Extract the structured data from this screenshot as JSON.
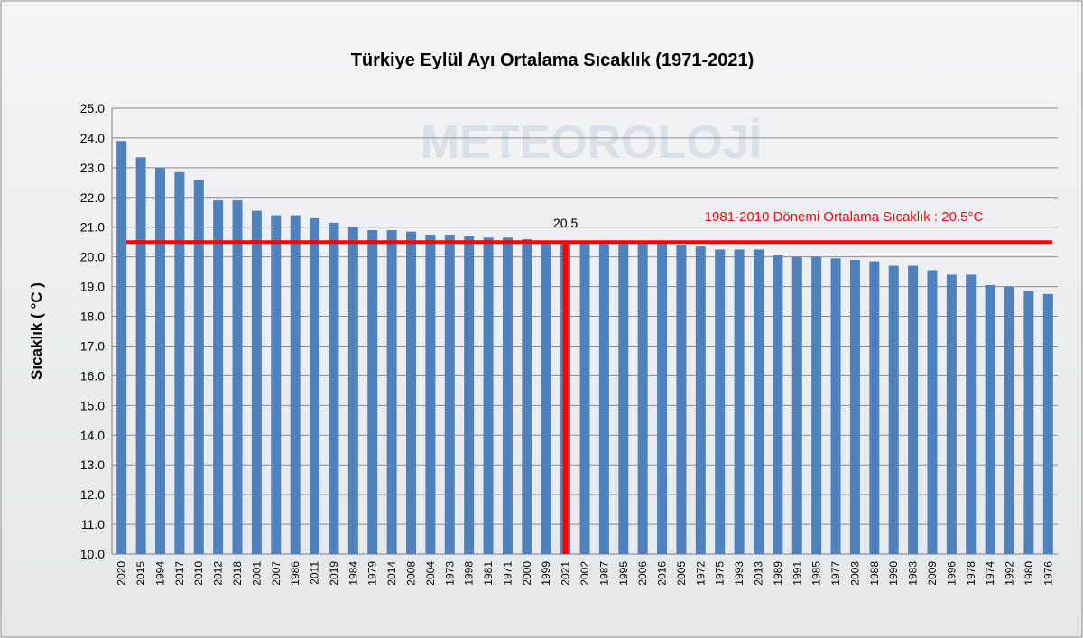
{
  "chart_data": {
    "type": "bar",
    "title": "Türkiye Eylül Ayı Ortalama Sıcaklık (1971-2021)",
    "y_label": "Sıcaklık ( °C )",
    "watermark": "METEOROLOJİ",
    "categories": [
      "2020",
      "2015",
      "1994",
      "2017",
      "2010",
      "2012",
      "2018",
      "2001",
      "2007",
      "1986",
      "2011",
      "2019",
      "1984",
      "1979",
      "2014",
      "2008",
      "2004",
      "1973",
      "1998",
      "1981",
      "1971",
      "2000",
      "1999",
      "2021",
      "2002",
      "1987",
      "1995",
      "2006",
      "2016",
      "2005",
      "1972",
      "1975",
      "1993",
      "2013",
      "1989",
      "1991",
      "1985",
      "1977",
      "2003",
      "1988",
      "1990",
      "1983",
      "2009",
      "1996",
      "1978",
      "1974",
      "1992",
      "1980",
      "1976"
    ],
    "values": [
      23.9,
      23.35,
      23.0,
      22.85,
      22.6,
      21.9,
      21.9,
      21.55,
      21.4,
      21.4,
      21.3,
      21.15,
      21.0,
      20.9,
      20.9,
      20.85,
      20.75,
      20.75,
      20.7,
      20.65,
      20.65,
      20.6,
      20.55,
      20.5,
      20.5,
      20.5,
      20.5,
      20.45,
      20.45,
      20.4,
      20.35,
      20.25,
      20.25,
      20.25,
      20.05,
      20.0,
      20.0,
      19.95,
      19.9,
      19.85,
      19.7,
      19.7,
      19.55,
      19.4,
      19.4,
      19.05,
      19.0,
      18.85,
      18.75
    ],
    "color": "#4f81bd",
    "ylim": [
      10,
      25
    ],
    "yticks": [
      {
        "value": 10,
        "label": "10.0"
      },
      {
        "value": 11,
        "label": "11.0"
      },
      {
        "value": 12,
        "label": "12.0"
      },
      {
        "value": 13,
        "label": "13.0"
      },
      {
        "value": 14,
        "label": "14.0"
      },
      {
        "value": 15,
        "label": "15.0"
      },
      {
        "value": 16,
        "label": "16.0"
      },
      {
        "value": 17,
        "label": "17.0"
      },
      {
        "value": 18,
        "label": "18.0"
      },
      {
        "value": 19,
        "label": "19.0"
      },
      {
        "value": 20,
        "label": "20.0"
      },
      {
        "value": 21,
        "label": "21.0"
      },
      {
        "value": 22,
        "label": "22.0"
      },
      {
        "value": 23,
        "label": "23.0"
      },
      {
        "value": 24,
        "label": "24.0"
      },
      {
        "value": 25,
        "label": "25.0"
      }
    ],
    "grid": true,
    "reference_line": {
      "value": 20.5,
      "label": "1981-2010 Dönemi  Ortalama Sıcaklık : 20.5°C",
      "color": "#ff0000"
    },
    "highlight": {
      "category": "2021",
      "label": "20.5",
      "color": "#ff0000"
    }
  }
}
